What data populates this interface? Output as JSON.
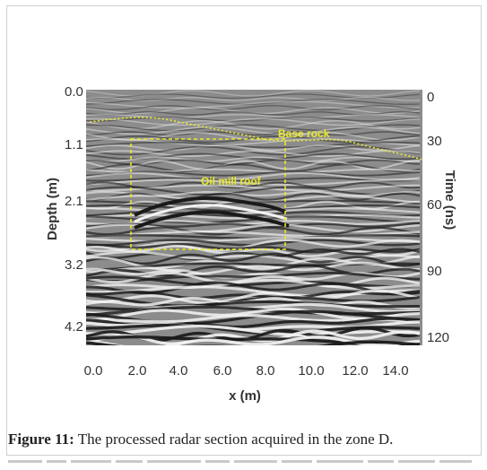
{
  "figure": {
    "x_axis": {
      "title": "x (m)",
      "ticks": [
        "0.0",
        "2.0",
        "4.0",
        "6.0",
        "8.0",
        "10.0",
        "12.0",
        "14.0"
      ]
    },
    "y_axis_left": {
      "title": "Depth (m)",
      "ticks": [
        "0.0",
        "1.1",
        "2.1",
        "3.2",
        "4.2"
      ]
    },
    "y_axis_right": {
      "title": "Time (ns)",
      "ticks": [
        "0",
        "30",
        "60",
        "90",
        "120"
      ]
    },
    "annotations": {
      "base_rock": "Base rock",
      "oil_mill_roof": "Oil mill roof"
    },
    "colors": {
      "annotation": "#e8e82a",
      "radargram_light": "#f2f2f2",
      "radargram_dark": "#1a1a1a"
    }
  },
  "caption": {
    "label": "Figure 11:",
    "text": " The processed radar section acquired in the zone D."
  }
}
